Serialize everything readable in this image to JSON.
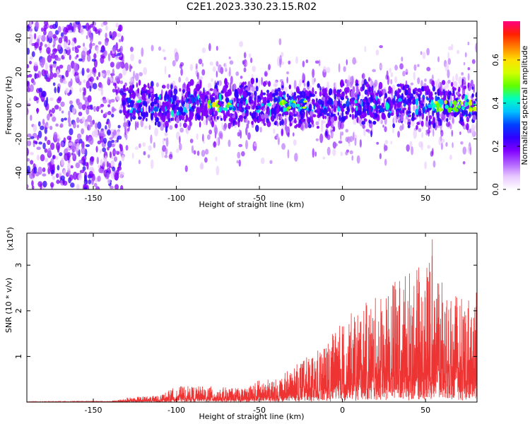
{
  "title": "C2E1.2023.330.23.15.R02",
  "chart_data": [
    {
      "type": "heatmap",
      "xlabel": "Height of straight line (km)",
      "ylabel": "Frequency (Hz)",
      "xlim": [
        -190,
        81
      ],
      "ylim": [
        -50,
        50
      ],
      "x_ticks": [
        -150,
        -100,
        -50,
        0,
        50
      ],
      "y_ticks": [
        -40,
        -20,
        0,
        20,
        40
      ],
      "colorbar": {
        "label": "Normalized spectral amplitude",
        "range": [
          0,
          0.78
        ],
        "ticks": [
          "0.0",
          "0.2",
          "0.4",
          "0.6"
        ],
        "tick_values": [
          0.0,
          0.2,
          0.4,
          0.6
        ],
        "colormap": [
          "#ffffff",
          "#e8c8ff",
          "#b060ff",
          "#8000ff",
          "#3000ff",
          "#0040ff",
          "#00c0ff",
          "#00ffc0",
          "#60ff00",
          "#d0ff00",
          "#ffe000",
          "#ff8000",
          "#ff2000",
          "#ff0080"
        ]
      },
      "structure": {
        "noise_region_x": [
          -190,
          -132
        ],
        "signal_x": [
          -132,
          81
        ],
        "signal_halfwidth_hz": 15,
        "hot_spots_x": [
          -75,
          -30,
          60,
          75
        ]
      }
    },
    {
      "type": "line",
      "xlabel": "Height of straight line (km)",
      "ylabel": "SNR (10 * v/v)",
      "y_multiplier": "(x10",
      "y_multiplier_exp": "4",
      "y_multiplier_close": ")",
      "color": "#ee3333",
      "xlim": [
        -190,
        81
      ],
      "ylim": [
        0,
        3.7
      ],
      "x_ticks": [
        -150,
        -100,
        -50,
        0,
        50
      ],
      "y_ticks": [
        1,
        2,
        3
      ],
      "envelope_points": [
        [
          -190,
          0.01
        ],
        [
          -140,
          0.02
        ],
        [
          -130,
          0.1
        ],
        [
          -110,
          0.15
        ],
        [
          -100,
          0.35
        ],
        [
          -80,
          0.35
        ],
        [
          -60,
          0.3
        ],
        [
          -50,
          0.5
        ],
        [
          -40,
          0.5
        ],
        [
          -25,
          0.9
        ],
        [
          -10,
          1.3
        ],
        [
          0,
          1.8
        ],
        [
          10,
          2.1
        ],
        [
          20,
          2.3
        ],
        [
          30,
          2.7
        ],
        [
          40,
          2.9
        ],
        [
          50,
          3.0
        ],
        [
          55,
          3.7
        ],
        [
          60,
          2.6
        ],
        [
          70,
          2.3
        ],
        [
          80,
          2.4
        ]
      ]
    }
  ]
}
